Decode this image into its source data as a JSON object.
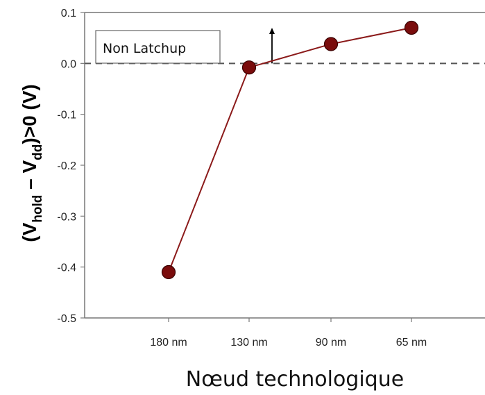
{
  "chart_data": {
    "type": "line",
    "categories": [
      "180 nm",
      "130 nm",
      "90 nm",
      "65 nm"
    ],
    "series": [
      {
        "values": [
          -0.41,
          -0.008,
          0.038,
          0.07
        ]
      }
    ],
    "xlabel": "Nœud technologique",
    "ylabel": {
      "open": "(V",
      "sub1": "hold",
      "minus": " – V",
      "sub2": "dd",
      "close": ")>0 (V)"
    },
    "ylim": [
      -0.5,
      0.1
    ],
    "yticks": [
      0.1,
      0.0,
      -0.1,
      -0.2,
      -0.3,
      -0.4,
      -0.5
    ],
    "ytick_labels": [
      "0.1",
      "0.0",
      "-0.1",
      "-0.2",
      "-0.3",
      "-0.4",
      "-0.5"
    ],
    "reference_line": {
      "y": 0.0,
      "style": "dashed"
    },
    "annotation": {
      "text": "Non Latchup",
      "arrow": "up"
    },
    "grid": false,
    "colors": {
      "line": "#8b1a1a",
      "marker": "#7a0c0c",
      "reference": "#555555"
    }
  }
}
